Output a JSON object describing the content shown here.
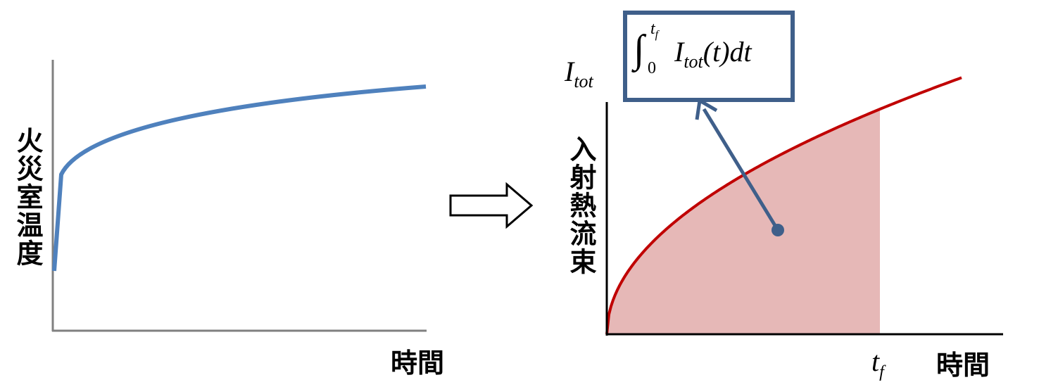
{
  "left_panel": {
    "y_label": "火災室温度",
    "x_label": "時間"
  },
  "right_panel": {
    "y_label": "入射熱流束",
    "x_label": "時間",
    "y_symbol": {
      "base": "I",
      "sub": "tot"
    },
    "x_symbol": {
      "base": "t",
      "sub": "f"
    },
    "formula": {
      "sign": "∫",
      "upper": "t",
      "upper_sub": "f",
      "lower": "0",
      "body": "I",
      "body_sub": "tot",
      "rest": "(t)dt"
    }
  }
}
